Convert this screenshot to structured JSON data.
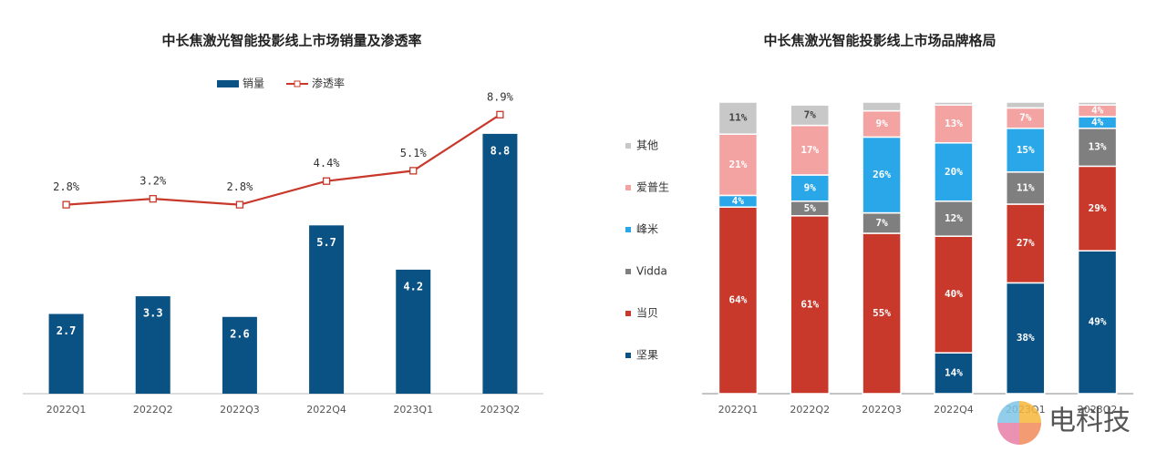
{
  "chart_data": [
    {
      "type": "combo",
      "title": "中长焦激光智能投影线上市场销量及渗透率",
      "categories": [
        "2022Q1",
        "2022Q2",
        "2022Q3",
        "2022Q4",
        "2023Q1",
        "2023Q2"
      ],
      "series": [
        {
          "name": "销量",
          "type": "bar",
          "color": "#0b5284",
          "values": [
            2.7,
            3.3,
            2.6,
            5.7,
            4.2,
            8.8
          ]
        },
        {
          "name": "渗透率",
          "type": "line",
          "axis": "y2",
          "color": "#c8382b",
          "values": [
            2.8,
            3.2,
            2.8,
            4.4,
            5.1,
            8.9
          ],
          "value_labels": [
            "2.8%",
            "3.2%",
            "2.8%",
            "4.4%",
            "5.1%",
            "8.9%"
          ]
        }
      ],
      "ylim": [
        0,
        10
      ],
      "y2lim": [
        -10,
        10
      ],
      "legend": "top"
    },
    {
      "type": "stacked_bar",
      "title": "中长焦激光智能投影线上市场品牌格局",
      "categories": [
        "2022Q1",
        "2022Q2",
        "2022Q3",
        "2022Q4",
        "2023Q1",
        "2023Q2"
      ],
      "series": [
        {
          "name": "坚果",
          "color": "#0b5284",
          "label_color": "#ffffff",
          "values": [
            null,
            null,
            null,
            14,
            38,
            49
          ],
          "value_labels": [
            null,
            null,
            null,
            "14%",
            "38%",
            "49%"
          ]
        },
        {
          "name": "当贝",
          "color": "#c8382b",
          "label_color": "#ffffff",
          "values": [
            64,
            61,
            55,
            40,
            27,
            29
          ],
          "value_labels": [
            "64%",
            "61%",
            "55%",
            "40%",
            "27%",
            "29%"
          ]
        },
        {
          "name": "Vidda",
          "color": "#7f7f7f",
          "label_color": "#ffffff",
          "values": [
            null,
            5,
            7,
            12,
            11,
            13
          ],
          "value_labels": [
            null,
            "5%",
            "7%",
            "12%",
            "11%",
            "13%"
          ]
        },
        {
          "name": "峰米",
          "color": "#2aa7e8",
          "label_color": "#ffffff",
          "values": [
            4,
            9,
            26,
            20,
            15,
            4
          ],
          "value_labels": [
            "4%",
            "9%",
            "26%",
            "20%",
            "15%",
            "4%"
          ]
        },
        {
          "name": "爱普生",
          "color": "#f4a3a3",
          "label_color": "#ffffff",
          "values": [
            21,
            17,
            9,
            13,
            7,
            4
          ],
          "value_labels": [
            "21%",
            "17%",
            "9%",
            "13%",
            "7%",
            "4%"
          ]
        },
        {
          "name": "其他",
          "color": "#c8c8c8",
          "label_color": "#444444",
          "values": [
            11,
            7,
            3,
            1,
            2,
            1
          ],
          "value_labels": [
            "11%",
            "7%",
            null,
            null,
            null,
            null
          ]
        }
      ],
      "ylim": [
        0,
        100
      ],
      "legend": "left"
    }
  ],
  "watermark": "电科技"
}
